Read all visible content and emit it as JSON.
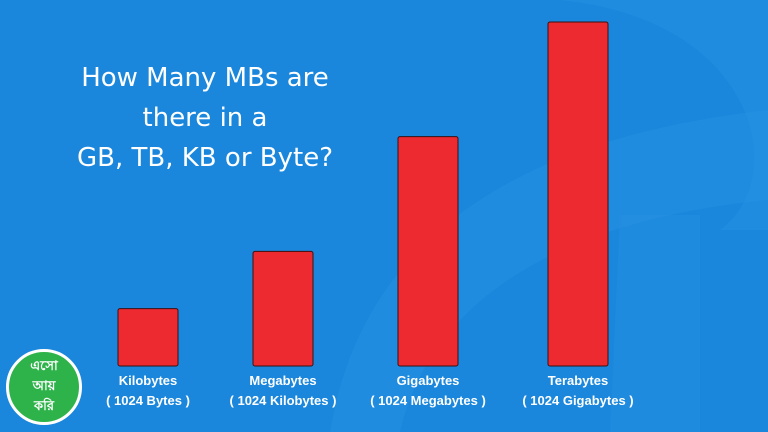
{
  "title_lines": [
    "How Many MBs are",
    "there in a",
    "GB, TB, KB or Byte?"
  ],
  "logo_text": [
    "এসো",
    "আয়",
    "করি"
  ],
  "colors": {
    "background": "#1a87dc",
    "bar": "#ec2a2f",
    "bar_outline": "#3b1010",
    "text": "#ffffff",
    "logo": "#2eb34a"
  },
  "chart_data": {
    "type": "bar",
    "title": "How Many MBs are there in a GB, TB, KB or Byte?",
    "categories": [
      "Kilobytes",
      "Megabytes",
      "Gigabytes",
      "Terabytes"
    ],
    "sublabels": [
      "( 1024 Bytes )",
      "( 1024 Kilobytes )",
      "( 1024 Megabytes )",
      "( 1024 Gigabytes )"
    ],
    "values": [
      1,
      2,
      4,
      6
    ],
    "xlabel": "",
    "ylabel": "",
    "ylim": [
      0,
      6
    ],
    "grid": false,
    "legend": "none"
  }
}
